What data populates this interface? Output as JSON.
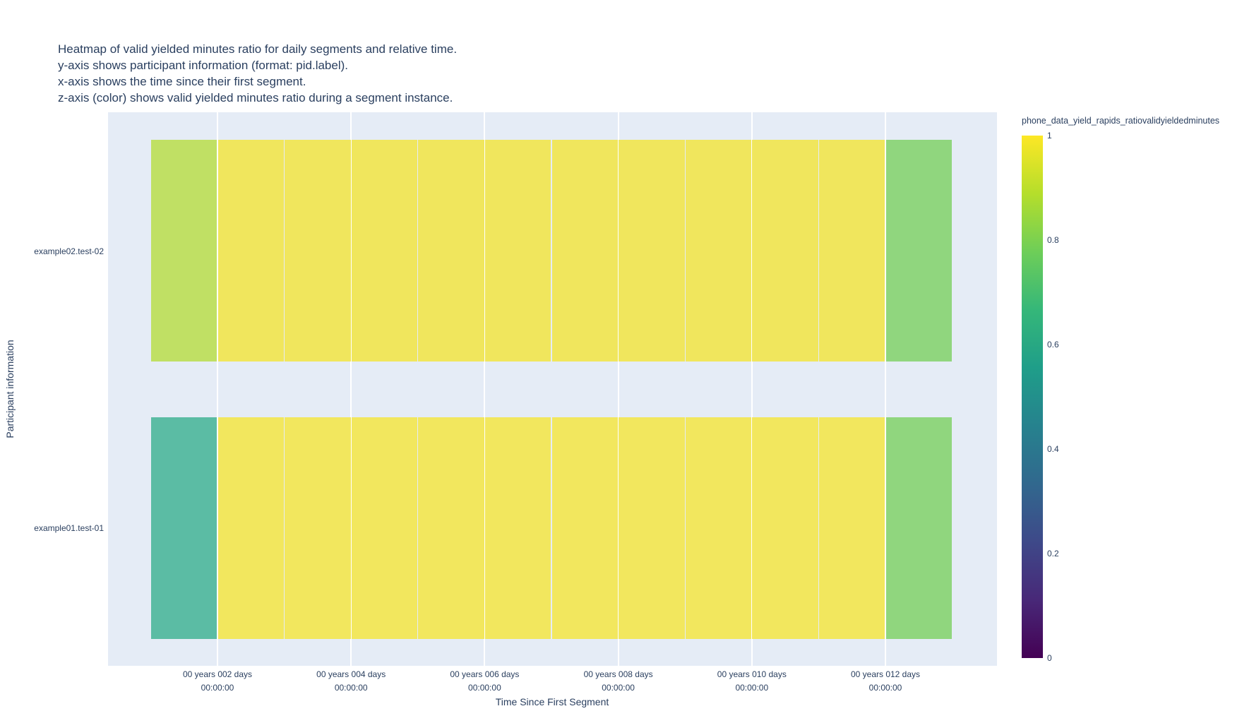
{
  "figure": {
    "background": "#ffffff",
    "plot_background": "#e5ecf6",
    "text_color": "#2a3f5f",
    "gridline_color": "#ffffff"
  },
  "title": {
    "lines": [
      "Heatmap of valid yielded minutes ratio for daily segments and relative time.",
      "y-axis shows participant information (format: pid.label).",
      "x-axis shows the time since their first segment.",
      "z-axis (color) shows valid yielded minutes ratio during a segment instance."
    ]
  },
  "x_axis": {
    "title": "Time Since First Segment",
    "tick_labels": [
      {
        "line1": "00 years 002 days",
        "line2": "00:00:00"
      },
      {
        "line1": "00 years 004 days",
        "line2": "00:00:00"
      },
      {
        "line1": "00 years 006 days",
        "line2": "00:00:00"
      },
      {
        "line1": "00 years 008 days",
        "line2": "00:00:00"
      },
      {
        "line1": "00 years 010 days",
        "line2": "00:00:00"
      },
      {
        "line1": "00 years 012 days",
        "line2": "00:00:00"
      }
    ]
  },
  "y_axis": {
    "title": "Participant information",
    "categories": [
      "example02.test-02",
      "example01.test-01"
    ]
  },
  "colorbar": {
    "title": "phone_data_yield_rapids_ratiovalidyieldedminutes",
    "tick_labels": [
      "1",
      "0.8",
      "0.6",
      "0.4",
      "0.2",
      "0"
    ],
    "gradient_top_to_bottom": [
      "#fde725",
      "#b5de2b",
      "#6ece58",
      "#35b779",
      "#1f9e89",
      "#26828e",
      "#31688e",
      "#3e4989",
      "#482878",
      "#440154"
    ]
  },
  "heatmap": {
    "rows": [
      {
        "label": "example02.test-02",
        "cell_colors": [
          "#c0e064",
          "#f0e65d",
          "#f0e65d",
          "#f0e65d",
          "#f0e65d",
          "#f0e65d",
          "#f0e65d",
          "#f0e65d",
          "#f0e65d",
          "#f0e65d",
          "#f0e65d",
          "#90d67e"
        ],
        "values": [
          0.85,
          0.97,
          0.97,
          0.97,
          0.97,
          0.97,
          0.97,
          0.97,
          0.97,
          0.97,
          0.97,
          0.78
        ]
      },
      {
        "label": "example01.test-01",
        "cell_colors": [
          "#5bbca4",
          "#f2e75e",
          "#f2e75e",
          "#f2e75e",
          "#f2e75e",
          "#f2e75e",
          "#f2e75e",
          "#f2e75e",
          "#f2e75e",
          "#f2e75e",
          "#f2e75e",
          "#90d67e"
        ],
        "values": [
          0.63,
          0.98,
          0.98,
          0.98,
          0.98,
          0.98,
          0.98,
          0.98,
          0.98,
          0.98,
          0.98,
          0.78
        ]
      }
    ]
  },
  "chart_data": {
    "type": "heatmap",
    "title": "Heatmap of valid yielded minutes ratio for daily segments and relative time.",
    "x": [
      "00 years 001 days 00:00:00",
      "00 years 002 days 00:00:00",
      "00 years 003 days 00:00:00",
      "00 years 004 days 00:00:00",
      "00 years 005 days 00:00:00",
      "00 years 006 days 00:00:00",
      "00 years 007 days 00:00:00",
      "00 years 008 days 00:00:00",
      "00 years 009 days 00:00:00",
      "00 years 010 days 00:00:00",
      "00 years 011 days 00:00:00",
      "00 years 012 days 00:00:00"
    ],
    "x_ticks_shown": [
      "00 years 002 days 00:00:00",
      "00 years 004 days 00:00:00",
      "00 years 006 days 00:00:00",
      "00 years 008 days 00:00:00",
      "00 years 010 days 00:00:00",
      "00 years 012 days 00:00:00"
    ],
    "y": [
      "example02.test-02",
      "example01.test-01"
    ],
    "z": [
      [
        0.85,
        0.97,
        0.97,
        0.97,
        0.97,
        0.97,
        0.97,
        0.97,
        0.97,
        0.97,
        0.97,
        0.78
      ],
      [
        0.63,
        0.98,
        0.98,
        0.98,
        0.98,
        0.98,
        0.98,
        0.98,
        0.98,
        0.98,
        0.98,
        0.78
      ]
    ],
    "zmin": 0,
    "zmax": 1,
    "colorscale": "Viridis",
    "xlabel": "Time Since First Segment",
    "ylabel": "Participant information",
    "colorbar_title": "phone_data_yield_rapids_ratiovalidyieldedminutes",
    "legend_position": "right",
    "grid": true
  }
}
